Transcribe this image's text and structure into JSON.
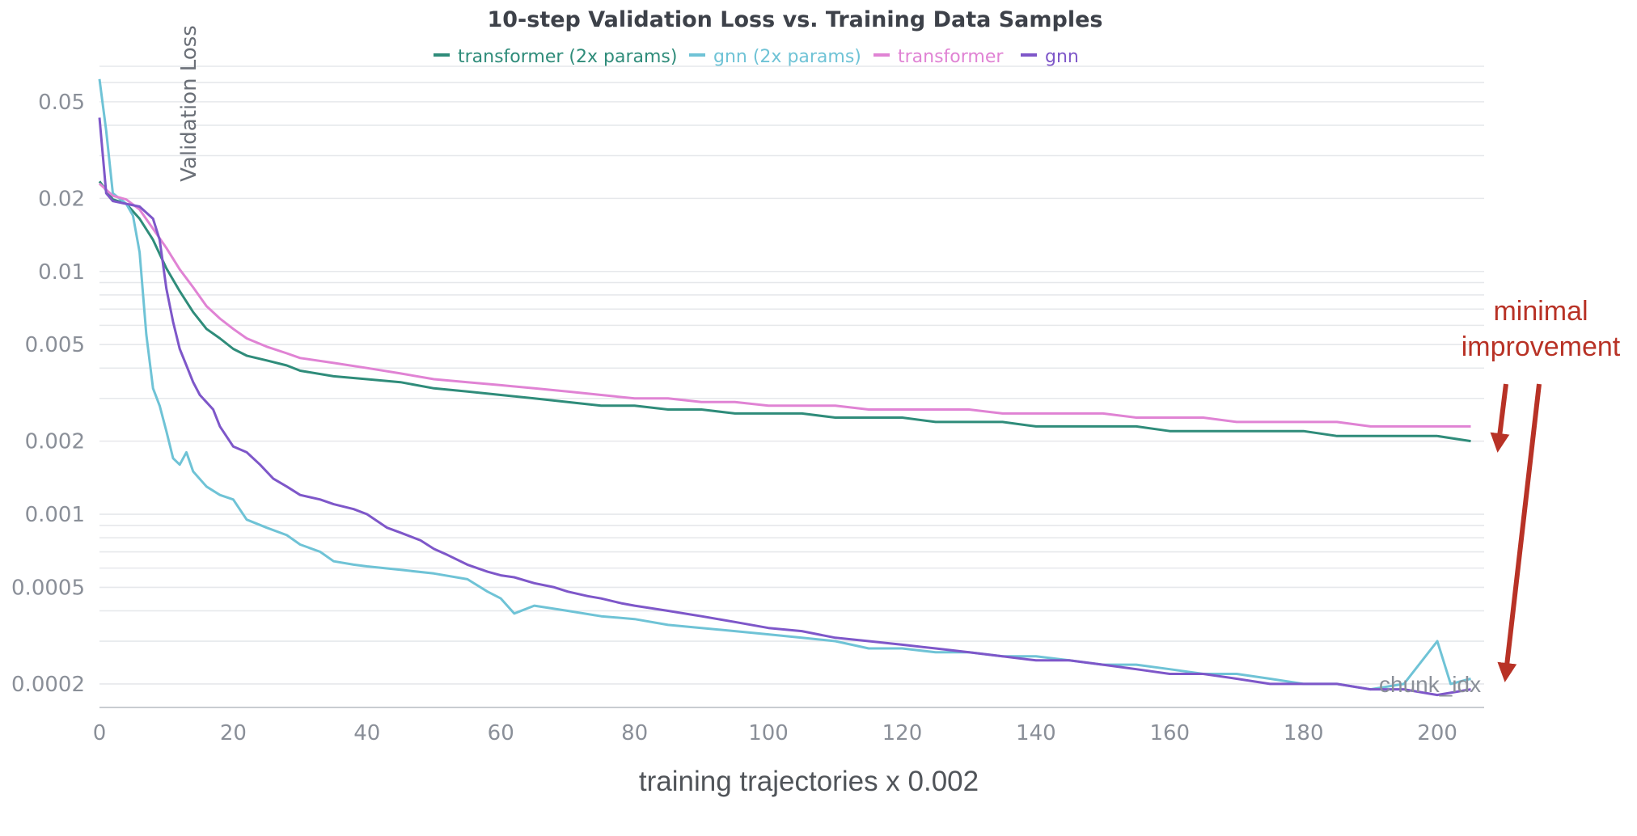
{
  "chart_data": {
    "type": "line",
    "title": "10-step Validation Loss vs. Training Data Samples",
    "ylabel": "Validation Loss",
    "xlabel": "training trajectories x 0.002",
    "corner_label": "chunk_idx",
    "y_scale": "log",
    "ylim": [
      0.00016,
      0.07
    ],
    "xlim": [
      0,
      207
    ],
    "x_ticks": [
      0,
      20,
      40,
      60,
      80,
      100,
      120,
      140,
      160,
      180,
      200
    ],
    "x_tick_labels": [
      "0",
      "20",
      "40",
      "60",
      "80",
      "100",
      "120",
      "140",
      "160",
      "180",
      "200"
    ],
    "y_ticks": [
      0.05,
      0.02,
      0.01,
      0.005,
      0.002,
      0.001,
      0.0005,
      0.0002
    ],
    "y_tick_labels": [
      "0.05",
      "0.02",
      "0.01",
      "0.005",
      "0.002",
      "0.001",
      "0.0005",
      "0.0002"
    ],
    "grid": true,
    "legend_position": "top-center",
    "annotation": {
      "text_lines": [
        "minimal",
        "improvement"
      ],
      "color": "#b83226"
    },
    "series": [
      {
        "name": "transformer (2x params)",
        "color": "#2f8c7a",
        "points": [
          [
            0,
            0.0235
          ],
          [
            2,
            0.0198
          ],
          [
            4,
            0.019
          ],
          [
            6,
            0.0165
          ],
          [
            8,
            0.0135
          ],
          [
            10,
            0.0103
          ],
          [
            12,
            0.0083
          ],
          [
            14,
            0.0068
          ],
          [
            16,
            0.0058
          ],
          [
            18,
            0.0053
          ],
          [
            20,
            0.0048
          ],
          [
            22,
            0.0045
          ],
          [
            25,
            0.0043
          ],
          [
            28,
            0.0041
          ],
          [
            30,
            0.0039
          ],
          [
            35,
            0.0037
          ],
          [
            40,
            0.0036
          ],
          [
            45,
            0.0035
          ],
          [
            50,
            0.0033
          ],
          [
            55,
            0.0032
          ],
          [
            60,
            0.0031
          ],
          [
            65,
            0.003
          ],
          [
            70,
            0.0029
          ],
          [
            75,
            0.0028
          ],
          [
            80,
            0.0028
          ],
          [
            85,
            0.0027
          ],
          [
            90,
            0.0027
          ],
          [
            95,
            0.0026
          ],
          [
            100,
            0.0026
          ],
          [
            105,
            0.0026
          ],
          [
            110,
            0.0025
          ],
          [
            115,
            0.0025
          ],
          [
            120,
            0.0025
          ],
          [
            125,
            0.0024
          ],
          [
            130,
            0.0024
          ],
          [
            135,
            0.0024
          ],
          [
            140,
            0.0023
          ],
          [
            145,
            0.0023
          ],
          [
            150,
            0.0023
          ],
          [
            155,
            0.0023
          ],
          [
            160,
            0.0022
          ],
          [
            165,
            0.0022
          ],
          [
            170,
            0.0022
          ],
          [
            175,
            0.0022
          ],
          [
            180,
            0.0022
          ],
          [
            185,
            0.0021
          ],
          [
            190,
            0.0021
          ],
          [
            195,
            0.0021
          ],
          [
            200,
            0.0021
          ],
          [
            205,
            0.002
          ]
        ]
      },
      {
        "name": "gnn (2x params)",
        "color": "#6fc3d6",
        "points": [
          [
            0,
            0.062
          ],
          [
            1,
            0.038
          ],
          [
            2,
            0.021
          ],
          [
            4,
            0.019
          ],
          [
            5,
            0.017
          ],
          [
            6,
            0.012
          ],
          [
            7,
            0.0055
          ],
          [
            8,
            0.0033
          ],
          [
            9,
            0.0028
          ],
          [
            10,
            0.0022
          ],
          [
            11,
            0.0017
          ],
          [
            12,
            0.0016
          ],
          [
            13,
            0.0018
          ],
          [
            14,
            0.0015
          ],
          [
            16,
            0.0013
          ],
          [
            18,
            0.0012
          ],
          [
            20,
            0.00115
          ],
          [
            22,
            0.00095
          ],
          [
            25,
            0.00088
          ],
          [
            28,
            0.00082
          ],
          [
            30,
            0.00075
          ],
          [
            33,
            0.0007
          ],
          [
            35,
            0.00064
          ],
          [
            38,
            0.00062
          ],
          [
            40,
            0.00061
          ],
          [
            45,
            0.00059
          ],
          [
            50,
            0.00057
          ],
          [
            55,
            0.00054
          ],
          [
            58,
            0.00048
          ],
          [
            60,
            0.00045
          ],
          [
            62,
            0.00039
          ],
          [
            65,
            0.00042
          ],
          [
            70,
            0.0004
          ],
          [
            75,
            0.00038
          ],
          [
            80,
            0.00037
          ],
          [
            85,
            0.00035
          ],
          [
            90,
            0.00034
          ],
          [
            95,
            0.00033
          ],
          [
            100,
            0.00032
          ],
          [
            105,
            0.00031
          ],
          [
            110,
            0.0003
          ],
          [
            115,
            0.00028
          ],
          [
            120,
            0.00028
          ],
          [
            125,
            0.00027
          ],
          [
            130,
            0.00027
          ],
          [
            135,
            0.00026
          ],
          [
            140,
            0.00026
          ],
          [
            145,
            0.00025
          ],
          [
            150,
            0.00024
          ],
          [
            155,
            0.00024
          ],
          [
            160,
            0.00023
          ],
          [
            165,
            0.00022
          ],
          [
            170,
            0.00022
          ],
          [
            175,
            0.00021
          ],
          [
            180,
            0.0002
          ],
          [
            185,
            0.0002
          ],
          [
            190,
            0.00019
          ],
          [
            195,
            0.0002
          ],
          [
            200,
            0.0003
          ],
          [
            202,
            0.0002
          ],
          [
            205,
            0.00021
          ]
        ]
      },
      {
        "name": "transformer",
        "color": "#e083d4",
        "points": [
          [
            0,
            0.023
          ],
          [
            2,
            0.0205
          ],
          [
            4,
            0.0198
          ],
          [
            6,
            0.018
          ],
          [
            8,
            0.015
          ],
          [
            10,
            0.0125
          ],
          [
            12,
            0.0102
          ],
          [
            14,
            0.0086
          ],
          [
            16,
            0.0072
          ],
          [
            18,
            0.0064
          ],
          [
            20,
            0.0058
          ],
          [
            22,
            0.0053
          ],
          [
            25,
            0.0049
          ],
          [
            28,
            0.0046
          ],
          [
            30,
            0.0044
          ],
          [
            35,
            0.0042
          ],
          [
            40,
            0.004
          ],
          [
            45,
            0.0038
          ],
          [
            50,
            0.0036
          ],
          [
            55,
            0.0035
          ],
          [
            60,
            0.0034
          ],
          [
            65,
            0.0033
          ],
          [
            70,
            0.0032
          ],
          [
            75,
            0.0031
          ],
          [
            80,
            0.003
          ],
          [
            85,
            0.003
          ],
          [
            90,
            0.0029
          ],
          [
            95,
            0.0029
          ],
          [
            100,
            0.0028
          ],
          [
            105,
            0.0028
          ],
          [
            110,
            0.0028
          ],
          [
            115,
            0.0027
          ],
          [
            120,
            0.0027
          ],
          [
            125,
            0.0027
          ],
          [
            130,
            0.0027
          ],
          [
            135,
            0.0026
          ],
          [
            140,
            0.0026
          ],
          [
            145,
            0.0026
          ],
          [
            150,
            0.0026
          ],
          [
            155,
            0.0025
          ],
          [
            160,
            0.0025
          ],
          [
            165,
            0.0025
          ],
          [
            170,
            0.0024
          ],
          [
            175,
            0.0024
          ],
          [
            180,
            0.0024
          ],
          [
            185,
            0.0024
          ],
          [
            190,
            0.0023
          ],
          [
            195,
            0.0023
          ],
          [
            200,
            0.0023
          ],
          [
            205,
            0.0023
          ]
        ]
      },
      {
        "name": "gnn",
        "color": "#7e57c9",
        "points": [
          [
            0,
            0.043
          ],
          [
            1,
            0.021
          ],
          [
            2,
            0.0195
          ],
          [
            4,
            0.019
          ],
          [
            6,
            0.0185
          ],
          [
            8,
            0.0165
          ],
          [
            9,
            0.0135
          ],
          [
            10,
            0.0085
          ],
          [
            11,
            0.0062
          ],
          [
            12,
            0.0048
          ],
          [
            13,
            0.0041
          ],
          [
            14,
            0.0035
          ],
          [
            15,
            0.0031
          ],
          [
            17,
            0.0027
          ],
          [
            18,
            0.0023
          ],
          [
            20,
            0.0019
          ],
          [
            22,
            0.0018
          ],
          [
            24,
            0.0016
          ],
          [
            26,
            0.0014
          ],
          [
            28,
            0.0013
          ],
          [
            30,
            0.0012
          ],
          [
            33,
            0.00115
          ],
          [
            35,
            0.0011
          ],
          [
            38,
            0.00105
          ],
          [
            40,
            0.001
          ],
          [
            43,
            0.00088
          ],
          [
            45,
            0.00084
          ],
          [
            48,
            0.00078
          ],
          [
            50,
            0.00072
          ],
          [
            52,
            0.00068
          ],
          [
            55,
            0.00062
          ],
          [
            58,
            0.00058
          ],
          [
            60,
            0.00056
          ],
          [
            62,
            0.00055
          ],
          [
            65,
            0.00052
          ],
          [
            68,
            0.0005
          ],
          [
            70,
            0.00048
          ],
          [
            73,
            0.00046
          ],
          [
            75,
            0.00045
          ],
          [
            78,
            0.00043
          ],
          [
            80,
            0.00042
          ],
          [
            85,
            0.0004
          ],
          [
            90,
            0.00038
          ],
          [
            95,
            0.00036
          ],
          [
            100,
            0.00034
          ],
          [
            105,
            0.00033
          ],
          [
            110,
            0.00031
          ],
          [
            115,
            0.0003
          ],
          [
            120,
            0.00029
          ],
          [
            125,
            0.00028
          ],
          [
            130,
            0.00027
          ],
          [
            135,
            0.00026
          ],
          [
            140,
            0.00025
          ],
          [
            145,
            0.00025
          ],
          [
            150,
            0.00024
          ],
          [
            155,
            0.00023
          ],
          [
            160,
            0.00022
          ],
          [
            165,
            0.00022
          ],
          [
            170,
            0.00021
          ],
          [
            175,
            0.0002
          ],
          [
            180,
            0.0002
          ],
          [
            185,
            0.0002
          ],
          [
            190,
            0.00019
          ],
          [
            195,
            0.00019
          ],
          [
            200,
            0.00018
          ],
          [
            205,
            0.00019
          ]
        ]
      }
    ]
  }
}
